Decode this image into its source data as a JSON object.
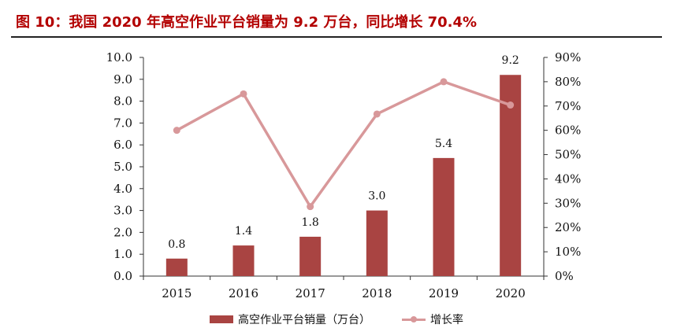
{
  "title": "图  10：我国 2020 年高空作业平台销量为 9.2 万台，同比增长 70.4%",
  "colors": {
    "title": "#b30000",
    "bar": "#a94442",
    "line": "#d8989a"
  },
  "chart_data": {
    "type": "bar",
    "categories": [
      "2015",
      "2016",
      "2017",
      "2018",
      "2019",
      "2020"
    ],
    "series": [
      {
        "name": "高空作业平台销量（万台）",
        "type": "bar",
        "axis": "left",
        "values": [
          0.8,
          1.4,
          1.8,
          3.0,
          5.4,
          9.2
        ],
        "labels": [
          "0.8",
          "1.4",
          "1.8",
          "3.0",
          "5.4",
          "9.2"
        ]
      },
      {
        "name": "增长率",
        "type": "line",
        "axis": "right",
        "values": [
          60,
          75,
          28.6,
          66.7,
          80,
          70.4
        ]
      }
    ],
    "y_left": {
      "min": 0,
      "max": 10,
      "ticks": [
        "0.0",
        "1.0",
        "2.0",
        "3.0",
        "4.0",
        "5.0",
        "6.0",
        "7.0",
        "8.0",
        "9.0",
        "10.0"
      ]
    },
    "y_right": {
      "min": 0,
      "max": 90,
      "ticks": [
        "0%",
        "10%",
        "20%",
        "30%",
        "40%",
        "50%",
        "60%",
        "70%",
        "80%",
        "90%"
      ]
    },
    "grid": false,
    "legend_position": "bottom"
  }
}
